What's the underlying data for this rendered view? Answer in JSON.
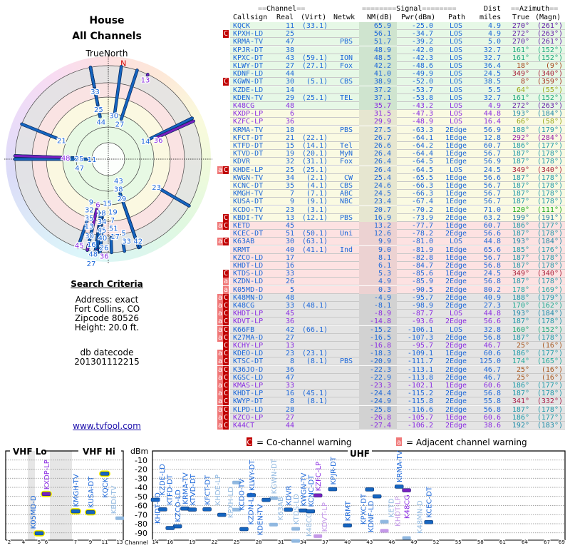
{
  "header": {
    "title": "House",
    "subtitle": "All Channels"
  },
  "polar": {
    "north_label": "TrueNorth",
    "magnetic_north_label": "N"
  },
  "search": {
    "title": "Search Criteria",
    "lines": [
      "Address: exact",
      "Fort Collins, CO",
      "Zipcode 80526",
      "Height: 20.0 ft."
    ]
  },
  "db": {
    "label": "db datecode",
    "value": "201301112215"
  },
  "link": "www.tvfool.com",
  "table": {
    "group_headers": {
      "channel": "Channel",
      "signal": "Signal",
      "dist": "Dist",
      "azimuth": "Azimuth"
    },
    "columns": [
      "Callsign",
      "Real",
      "(Virt)",
      "Netwk",
      "NM(dB)",
      "Pwr(dBm)",
      "Path",
      "miles",
      "True",
      "(Magn)"
    ],
    "colors": {
      "normal": "#1a66d9",
      "low_power": "#8a2be2",
      "co_badge": "#c00000",
      "adj_badge": "#f07878"
    },
    "band_colors": {
      "green": "#e6f8e6",
      "yellow": "#fafae2",
      "pink": "#fde2e2",
      "gray": "#e4e4e4"
    },
    "rows": [
      [
        "",
        "KQCK",
        "11",
        "(33.1)",
        "",
        "65.9",
        "-25.0",
        "LOS",
        "4.9",
        "270°",
        "(261°)",
        "normal",
        "green"
      ],
      [
        "C",
        "KPXH-LD",
        "25",
        "",
        "",
        "56.1",
        "-34.7",
        "LOS",
        "4.9",
        "272°",
        "(263°)",
        "normal",
        "green"
      ],
      [
        "",
        "KRMA-TV",
        "47",
        "",
        "PBS",
        "51.7",
        "-39.2",
        "LOS",
        "5.0",
        "270°",
        "(261°)",
        "normal",
        "green"
      ],
      [
        "",
        "KPJR-DT",
        "38",
        "",
        "",
        "48.9",
        "-42.0",
        "LOS",
        "32.7",
        "161°",
        "(152°)",
        "normal",
        "green"
      ],
      [
        "",
        "KPXC-DT",
        "43",
        "(59.1)",
        "ION",
        "48.5",
        "-42.3",
        "LOS",
        "32.7",
        "161°",
        "(152°)",
        "normal",
        "green"
      ],
      [
        "",
        "KLWY-DT",
        "27",
        "(27.1)",
        "Fox",
        "42.2",
        "-48.6",
        "LOS",
        "36.4",
        "18°",
        "(9°)",
        "normal",
        "green"
      ],
      [
        "",
        "KDNF-LD",
        "44",
        "",
        "",
        "41.0",
        "-49.9",
        "LOS",
        "24.5",
        "349°",
        "(340°)",
        "normal",
        "green"
      ],
      [
        "C",
        "KGWN-DT",
        "30",
        "(5.1)",
        "CBS",
        "38.9",
        "-52.0",
        "LOS",
        "38.5",
        "8°",
        "(359°)",
        "normal",
        "green"
      ],
      [
        "",
        "KZDE-LD",
        "14",
        "",
        "",
        "37.2",
        "-53.7",
        "LOS",
        "5.5",
        "64°",
        "(55°)",
        "normal",
        "green"
      ],
      [
        "",
        "KDEN-TV",
        "29",
        "(25.1)",
        "TEL",
        "37.1",
        "-53.8",
        "LOS",
        "32.7",
        "161°",
        "(152°)",
        "normal",
        "green"
      ],
      [
        "",
        "K48CG",
        "48",
        "",
        "",
        "35.7",
        "-43.2",
        "LOS",
        "4.9",
        "272°",
        "(263°)",
        "low_power",
        "green"
      ],
      [
        "",
        "KXDP-LP",
        "6",
        "",
        "",
        "31.5",
        "-47.3",
        "LOS",
        "44.8",
        "193°",
        "(184°)",
        "low_power",
        "yellow"
      ],
      [
        "",
        "KZFC-LP",
        "36",
        "",
        "",
        "29.9",
        "-48.9",
        "LOS",
        "16.4",
        "66°",
        "(58°)",
        "low_power",
        "yellow"
      ],
      [
        "",
        "KRMA-TV",
        "18",
        "",
        "PBS",
        "27.5",
        "-63.3",
        "2Edge",
        "56.9",
        "188°",
        "(179°)",
        "normal",
        "yellow"
      ],
      [
        "",
        "KFCT-DT",
        "21",
        "(22.1)",
        "",
        "26.7",
        "-64.1",
        "1Edge",
        "12.8",
        "292°",
        "(284°)",
        "normal",
        "yellow"
      ],
      [
        "",
        "KTFD-DT",
        "15",
        "(14.1)",
        "Tel",
        "26.6",
        "-64.2",
        "1Edge",
        "60.7",
        "186°",
        "(177°)",
        "normal",
        "yellow"
      ],
      [
        "",
        "KTVD-DT",
        "19",
        "(20.1)",
        "MyN",
        "26.4",
        "-64.4",
        "1Edge",
        "56.7",
        "187°",
        "(178°)",
        "normal",
        "yellow"
      ],
      [
        "",
        "KDVR",
        "32",
        "(31.1)",
        "Fox",
        "26.4",
        "-64.5",
        "1Edge",
        "56.9",
        "187°",
        "(178°)",
        "normal",
        "yellow"
      ],
      [
        "aC",
        "KHDE-LP",
        "25",
        "(25.1)",
        "",
        "26.4",
        "-64.5",
        "LOS",
        "24.5",
        "349°",
        "(340°)",
        "normal",
        "yellow"
      ],
      [
        "",
        "KWGN-TV",
        "34",
        "(2.1)",
        "CW",
        "25.4",
        "-65.5",
        "1Edge",
        "56.6",
        "187°",
        "(178°)",
        "normal",
        "yellow"
      ],
      [
        "",
        "KCNC-DT",
        "35",
        "(4.1)",
        "CBS",
        "24.6",
        "-66.3",
        "1Edge",
        "56.7",
        "187°",
        "(178°)",
        "normal",
        "yellow"
      ],
      [
        "",
        "KMGH-TV",
        "7",
        "(7.1)",
        "ABC",
        "24.5",
        "-66.3",
        "1Edge",
        "56.7",
        "187°",
        "(178°)",
        "normal",
        "yellow"
      ],
      [
        "",
        "KUSA-DT",
        "9",
        "(9.1)",
        "NBC",
        "23.4",
        "-67.4",
        "1Edge",
        "56.7",
        "187°",
        "(178°)",
        "normal",
        "yellow"
      ],
      [
        "",
        "KCDO-TV",
        "23",
        "(3.1)",
        "",
        "20.7",
        "-70.2",
        "1Edge",
        "71.0",
        "120°",
        "(111°)",
        "normal",
        "yellow"
      ],
      [
        "C",
        "KBDI-TV",
        "13",
        "(12.1)",
        "PBS",
        "16.9",
        "-73.9",
        "2Edge",
        "63.2",
        "199°",
        "(191°)",
        "normal",
        "yellow"
      ],
      [
        "aC",
        "KETD",
        "45",
        "",
        "",
        "13.2",
        "-77.7",
        "1Edge",
        "60.7",
        "186°",
        "(177°)",
        "normal",
        "pink"
      ],
      [
        "",
        "KCEC-DT",
        "51",
        "(50.1)",
        "Uni",
        "12.6",
        "-78.2",
        "2Edge",
        "56.6",
        "187°",
        "(178°)",
        "normal",
        "pink"
      ],
      [
        "aC",
        "K63AB",
        "30",
        "(63.1)",
        "",
        "9.9",
        "-81.0",
        "LOS",
        "44.8",
        "193°",
        "(184°)",
        "normal",
        "pink"
      ],
      [
        "",
        "KRMT",
        "40",
        "(41.1)",
        "Ind",
        "9.0",
        "-81.9",
        "1Edge",
        "65.6",
        "185°",
        "(176°)",
        "normal",
        "pink"
      ],
      [
        "",
        "KZCO-LD",
        "17",
        "",
        "",
        "8.1",
        "-82.8",
        "1Edge",
        "56.7",
        "187°",
        "(178°)",
        "normal",
        "pink"
      ],
      [
        "",
        "KHDT-LD",
        "16",
        "",
        "",
        "6.1",
        "-84.7",
        "2Edge",
        "56.8",
        "187°",
        "(178°)",
        "normal",
        "pink"
      ],
      [
        "C",
        "KTDS-LD",
        "33",
        "",
        "",
        "5.3",
        "-85.6",
        "1Edge",
        "24.5",
        "349°",
        "(340°)",
        "normal",
        "pink"
      ],
      [
        "a",
        "KZDN-LD",
        "26",
        "",
        "",
        "4.9",
        "-85.9",
        "2Edge",
        "56.8",
        "187°",
        "(178°)",
        "normal",
        "pink"
      ],
      [
        "a",
        "K05MD-D",
        "5",
        "",
        "",
        "0.3",
        "-90.5",
        "2Edge",
        "80.2",
        "178°",
        "(169°)",
        "normal",
        "pink"
      ],
      [
        "aC",
        "K48MN-D",
        "48",
        "",
        "",
        "-4.9",
        "-95.7",
        "2Edge",
        "40.9",
        "188°",
        "(179°)",
        "normal",
        "gray"
      ],
      [
        "aC",
        "K48CG",
        "33",
        "(48.1)",
        "",
        "-8.1",
        "-98.9",
        "2Edge",
        "27.3",
        "170°",
        "(162°)",
        "normal",
        "gray"
      ],
      [
        "aC",
        "KHDT-LP",
        "45",
        "",
        "",
        "-8.9",
        "-87.7",
        "LOS",
        "44.8",
        "193°",
        "(184°)",
        "low_power",
        "gray"
      ],
      [
        "aC",
        "KDVT-LP",
        "36",
        "",
        "",
        "-14.8",
        "-93.6",
        "2Edge",
        "56.6",
        "187°",
        "(178°)",
        "low_power",
        "gray"
      ],
      [
        "aC",
        "K66FB",
        "42",
        "(66.1)",
        "",
        "-15.2",
        "-106.1",
        "LOS",
        "32.8",
        "160°",
        "(152°)",
        "normal",
        "gray"
      ],
      [
        "aC",
        "K27MA-D",
        "27",
        "",
        "",
        "-16.5",
        "-107.3",
        "2Edge",
        "56.8",
        "187°",
        "(178°)",
        "normal",
        "gray"
      ],
      [
        "C",
        "KCHY-LP",
        "13",
        "",
        "",
        "-16.8",
        "-95.7",
        "2Edge",
        "46.7",
        "25°",
        "(16°)",
        "low_power",
        "gray"
      ],
      [
        "aC",
        "KDEO-LD",
        "23",
        "(23.1)",
        "",
        "-18.3",
        "-109.1",
        "1Edge",
        "60.6",
        "186°",
        "(177°)",
        "normal",
        "gray"
      ],
      [
        "aC",
        "KTSC-DT",
        "8",
        "(8.1)",
        "PBS",
        "-20.9",
        "-111.7",
        "2Edge",
        "125.0",
        "174°",
        "(165°)",
        "normal",
        "gray"
      ],
      [
        "aC",
        "K36JO-D",
        "36",
        "",
        "",
        "-22.3",
        "-113.1",
        "2Edge",
        "46.7",
        "25°",
        "(16°)",
        "normal",
        "gray"
      ],
      [
        "aC",
        "KGSC-LD",
        "47",
        "",
        "",
        "-22.9",
        "-113.8",
        "2Edge",
        "46.7",
        "25°",
        "(16°)",
        "normal",
        "gray"
      ],
      [
        "aC",
        "KMAS-LP",
        "33",
        "",
        "",
        "-23.3",
        "-102.1",
        "1Edge",
        "60.6",
        "186°",
        "(177°)",
        "low_power",
        "gray"
      ],
      [
        "aC",
        "KHDT-LP",
        "16",
        "(45.1)",
        "",
        "-24.4",
        "-115.2",
        "2Edge",
        "56.8",
        "187°",
        "(178°)",
        "normal",
        "gray"
      ],
      [
        "aC",
        "KWYP-DT",
        "8",
        "(8.1)",
        "",
        "-24.9",
        "-115.8",
        "2Edge",
        "55.8",
        "341°",
        "(332°)",
        "normal",
        "gray"
      ],
      [
        "aC",
        "KLPD-LD",
        "28",
        "",
        "",
        "-25.8",
        "-116.6",
        "2Edge",
        "56.8",
        "187°",
        "(178°)",
        "normal",
        "gray"
      ],
      [
        "aC",
        "KZCO-LP",
        "27",
        "",
        "",
        "-26.8",
        "-105.7",
        "1Edge",
        "60.6",
        "186°",
        "(177°)",
        "low_power",
        "gray"
      ],
      [
        "aC",
        "K44CT",
        "44",
        "",
        "",
        "-27.4",
        "-106.2",
        "2Edge",
        "38.6",
        "192°",
        "(183°)",
        "low_power",
        "gray"
      ]
    ]
  },
  "spectrum": {
    "vhf_lo": "VHF Lo",
    "vhf_hi": "VHF Hi",
    "uhf": "UHF",
    "y_unit": "dBm",
    "x_label": "Channel",
    "y_ticks": [
      "-10",
      "-20",
      "-30",
      "-40",
      "-50",
      "-60",
      "-70",
      "-80",
      "-90"
    ],
    "vhf_ticks": [
      "2",
      "4",
      "5",
      "6",
      "7",
      "9",
      "11",
      "13"
    ],
    "uhf_ticks": [
      "14",
      "16",
      "19",
      "22",
      "25",
      "28",
      "31",
      "34",
      "37",
      "40",
      "43",
      "46",
      "49",
      "52",
      "55",
      "58",
      "61",
      "64",
      "67",
      "69"
    ],
    "legend": {
      "co_badge": "C",
      "co_text": "= Co-channel warning",
      "adj_badge": "a",
      "adj_text": "= Adjacent channel warning"
    }
  }
}
